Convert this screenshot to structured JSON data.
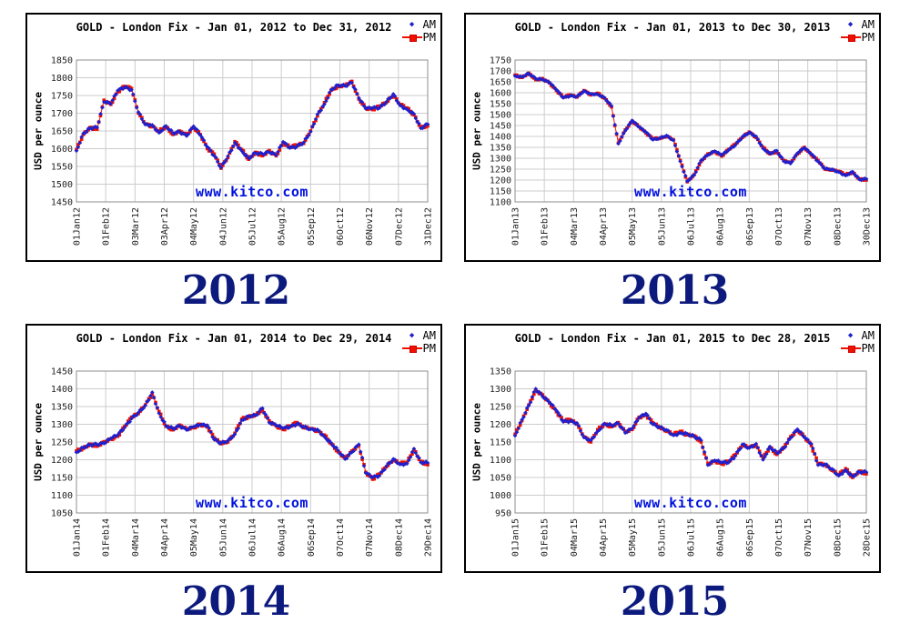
{
  "colors": {
    "am": "#2020cc",
    "pm": "#ee1100",
    "grid": "#cccccc",
    "frame": "#8f8f8f",
    "tick_text": "#222222",
    "watermark": "#0011dd",
    "year_label": "#0d1a7d",
    "panel_border": "#000000"
  },
  "chart_data": [
    {
      "type": "line",
      "year": "2012",
      "title": "GOLD - London Fix - Jan 01, 2012 to Dec 31, 2012",
      "legend_am": "AM",
      "legend_pm": "PM",
      "ylabel": "USD per ounce",
      "watermark": "www.kitco.com",
      "ylim": [
        1450,
        1850
      ],
      "ytick_step": 50,
      "grid": true,
      "legend_position": "top-right",
      "xtick_labels": [
        "01Jan12",
        "01Feb12",
        "03Mar12",
        "03Apr12",
        "04May12",
        "04Jun12",
        "05Jul12",
        "05Aug12",
        "05Sep12",
        "06Oct12",
        "06Nov12",
        "07Dec12",
        "31Dec12"
      ],
      "series": [
        {
          "name": "AM",
          "marker": "diamond",
          "color": "#2020cc",
          "values": [
            1594,
            1643,
            1658,
            1660,
            1732,
            1727,
            1764,
            1773,
            1766,
            1703,
            1668,
            1667,
            1645,
            1664,
            1644,
            1647,
            1636,
            1663,
            1638,
            1605,
            1580,
            1547,
            1579,
            1617,
            1594,
            1573,
            1588,
            1585,
            1590,
            1582,
            1619,
            1602,
            1606,
            1618,
            1648,
            1697,
            1725,
            1767,
            1779,
            1777,
            1786,
            1743,
            1713,
            1715,
            1715,
            1732,
            1754,
            1722,
            1711,
            1698,
            1658,
            1669
          ]
        },
        {
          "name": "PM",
          "marker": "square",
          "color": "#ee1100",
          "values": [
            1598,
            1640,
            1660,
            1655,
            1737,
            1725,
            1760,
            1776,
            1770,
            1700,
            1670,
            1662,
            1650,
            1662,
            1640,
            1650,
            1640,
            1660,
            1640,
            1600,
            1585,
            1545,
            1575,
            1620,
            1598,
            1570,
            1590,
            1580,
            1595,
            1580,
            1615,
            1605,
            1610,
            1615,
            1650,
            1692,
            1730,
            1765,
            1775,
            1780,
            1790,
            1740,
            1715,
            1710,
            1720,
            1730,
            1750,
            1725,
            1715,
            1695,
            1660,
            1664
          ]
        }
      ]
    },
    {
      "type": "line",
      "year": "2013",
      "title": "GOLD - London Fix - Jan 01, 2013 to Dec 30, 2013",
      "legend_am": "AM",
      "legend_pm": "PM",
      "ylabel": "USD per ounce",
      "watermark": "www.kitco.com",
      "ylim": [
        1100,
        1750
      ],
      "ytick_step": 50,
      "grid": true,
      "legend_position": "top-right",
      "xtick_labels": [
        "01Jan13",
        "01Feb13",
        "04Mar13",
        "04Apr13",
        "05May13",
        "05Jun13",
        "06Jul13",
        "06Aug13",
        "06Sep13",
        "07Oct13",
        "07Nov13",
        "08Dec13",
        "30Dec13"
      ],
      "series": [
        {
          "name": "AM",
          "marker": "diamond",
          "color": "#2020cc",
          "values": [
            1677,
            1673,
            1688,
            1665,
            1660,
            1647,
            1614,
            1577,
            1586,
            1583,
            1608,
            1595,
            1593,
            1577,
            1539,
            1367,
            1426,
            1473,
            1443,
            1420,
            1385,
            1392,
            1404,
            1382,
            1286,
            1195,
            1223,
            1290,
            1315,
            1332,
            1314,
            1337,
            1361,
            1398,
            1418,
            1400,
            1345,
            1322,
            1334,
            1287,
            1276,
            1323,
            1348,
            1320,
            1285,
            1252,
            1249,
            1237,
            1221,
            1238,
            1203,
            1205
          ]
        },
        {
          "name": "PM",
          "marker": "square",
          "color": "#ee1100",
          "values": [
            1681,
            1670,
            1690,
            1660,
            1665,
            1645,
            1610,
            1580,
            1590,
            1580,
            1610,
            1590,
            1598,
            1575,
            1535,
            1370,
            1430,
            1470,
            1445,
            1415,
            1390,
            1390,
            1400,
            1385,
            1290,
            1192,
            1225,
            1285,
            1320,
            1330,
            1310,
            1340,
            1365,
            1395,
            1420,
            1395,
            1350,
            1320,
            1330,
            1290,
            1280,
            1320,
            1350,
            1315,
            1290,
            1250,
            1245,
            1240,
            1225,
            1235,
            1205,
            1200
          ]
        }
      ]
    },
    {
      "type": "line",
      "year": "2014",
      "title": "GOLD - London Fix - Jan 01, 2014 to Dec 29, 2014",
      "legend_am": "AM",
      "legend_pm": "PM",
      "ylabel": "USD per ounce",
      "watermark": "www.kitco.com",
      "ylim": [
        1050,
        1450
      ],
      "ytick_step": 50,
      "grid": true,
      "legend_position": "top-right",
      "xtick_labels": [
        "01Jan14",
        "01Feb14",
        "04Mar14",
        "04Apr14",
        "05May14",
        "05Jun14",
        "06Jul14",
        "06Aug14",
        "06Sep14",
        "07Oct14",
        "07Nov14",
        "08Dec14",
        "29Dec14"
      ],
      "series": [
        {
          "name": "AM",
          "marker": "diamond",
          "color": "#2020cc",
          "values": [
            1221,
            1235,
            1242,
            1243,
            1246,
            1260,
            1270,
            1291,
            1316,
            1333,
            1353,
            1390,
            1331,
            1296,
            1288,
            1295,
            1284,
            1293,
            1298,
            1297,
            1257,
            1247,
            1254,
            1272,
            1311,
            1323,
            1325,
            1345,
            1305,
            1297,
            1289,
            1292,
            1301,
            1293,
            1286,
            1285,
            1265,
            1247,
            1226,
            1202,
            1221,
            1243,
            1163,
            1150,
            1155,
            1182,
            1202,
            1187,
            1189,
            1231,
            1193,
            1191
          ]
        },
        {
          "name": "PM",
          "marker": "square",
          "color": "#ee1100",
          "values": [
            1225,
            1232,
            1244,
            1238,
            1251,
            1258,
            1266,
            1294,
            1320,
            1330,
            1355,
            1385,
            1336,
            1294,
            1284,
            1298,
            1288,
            1290,
            1300,
            1292,
            1262,
            1245,
            1250,
            1275,
            1315,
            1320,
            1327,
            1340,
            1310,
            1295,
            1285,
            1295,
            1305,
            1290,
            1288,
            1280,
            1270,
            1245,
            1222,
            1205,
            1225,
            1240,
            1165,
            1145,
            1160,
            1180,
            1198,
            1190,
            1193,
            1228,
            1195,
            1186
          ]
        }
      ]
    },
    {
      "type": "line",
      "year": "2015",
      "title": "GOLD - London Fix - Jan 01, 2015 to Dec 28, 2015",
      "legend_am": "AM",
      "legend_pm": "PM",
      "ylabel": "USD per ounce",
      "watermark": "www.kitco.com",
      "ylim": [
        950,
        1350
      ],
      "ytick_step": 50,
      "grid": true,
      "legend_position": "top-right",
      "xtick_labels": [
        "01Jan15",
        "01Feb15",
        "04Mar15",
        "04Apr15",
        "05May15",
        "05Jun15",
        "06Jul15",
        "06Aug15",
        "06Sep15",
        "07Oct15",
        "07Nov15",
        "08Dec15",
        "28Dec15"
      ],
      "series": [
        {
          "name": "AM",
          "marker": "diamond",
          "color": "#2020cc",
          "values": [
            1168,
            1213,
            1253,
            1300,
            1278,
            1262,
            1239,
            1207,
            1209,
            1203,
            1163,
            1155,
            1180,
            1202,
            1197,
            1202,
            1176,
            1188,
            1218,
            1230,
            1200,
            1192,
            1184,
            1169,
            1176,
            1173,
            1166,
            1155,
            1085,
            1098,
            1092,
            1092,
            1111,
            1143,
            1133,
            1145,
            1100,
            1137,
            1119,
            1132,
            1161,
            1186,
            1163,
            1145,
            1085,
            1087,
            1074,
            1055,
            1071,
            1053,
            1066,
            1065
          ]
        },
        {
          "name": "PM",
          "marker": "square",
          "color": "#ee1100",
          "values": [
            1172,
            1210,
            1255,
            1295,
            1283,
            1260,
            1235,
            1210,
            1213,
            1200,
            1165,
            1150,
            1185,
            1200,
            1193,
            1205,
            1180,
            1185,
            1220,
            1225,
            1205,
            1190,
            1180,
            1172,
            1180,
            1170,
            1168,
            1150,
            1090,
            1096,
            1088,
            1095,
            1115,
            1140,
            1135,
            1140,
            1105,
            1135,
            1115,
            1135,
            1165,
            1183,
            1165,
            1140,
            1090,
            1085,
            1070,
            1058,
            1075,
            1050,
            1068,
            1060
          ]
        }
      ]
    }
  ]
}
